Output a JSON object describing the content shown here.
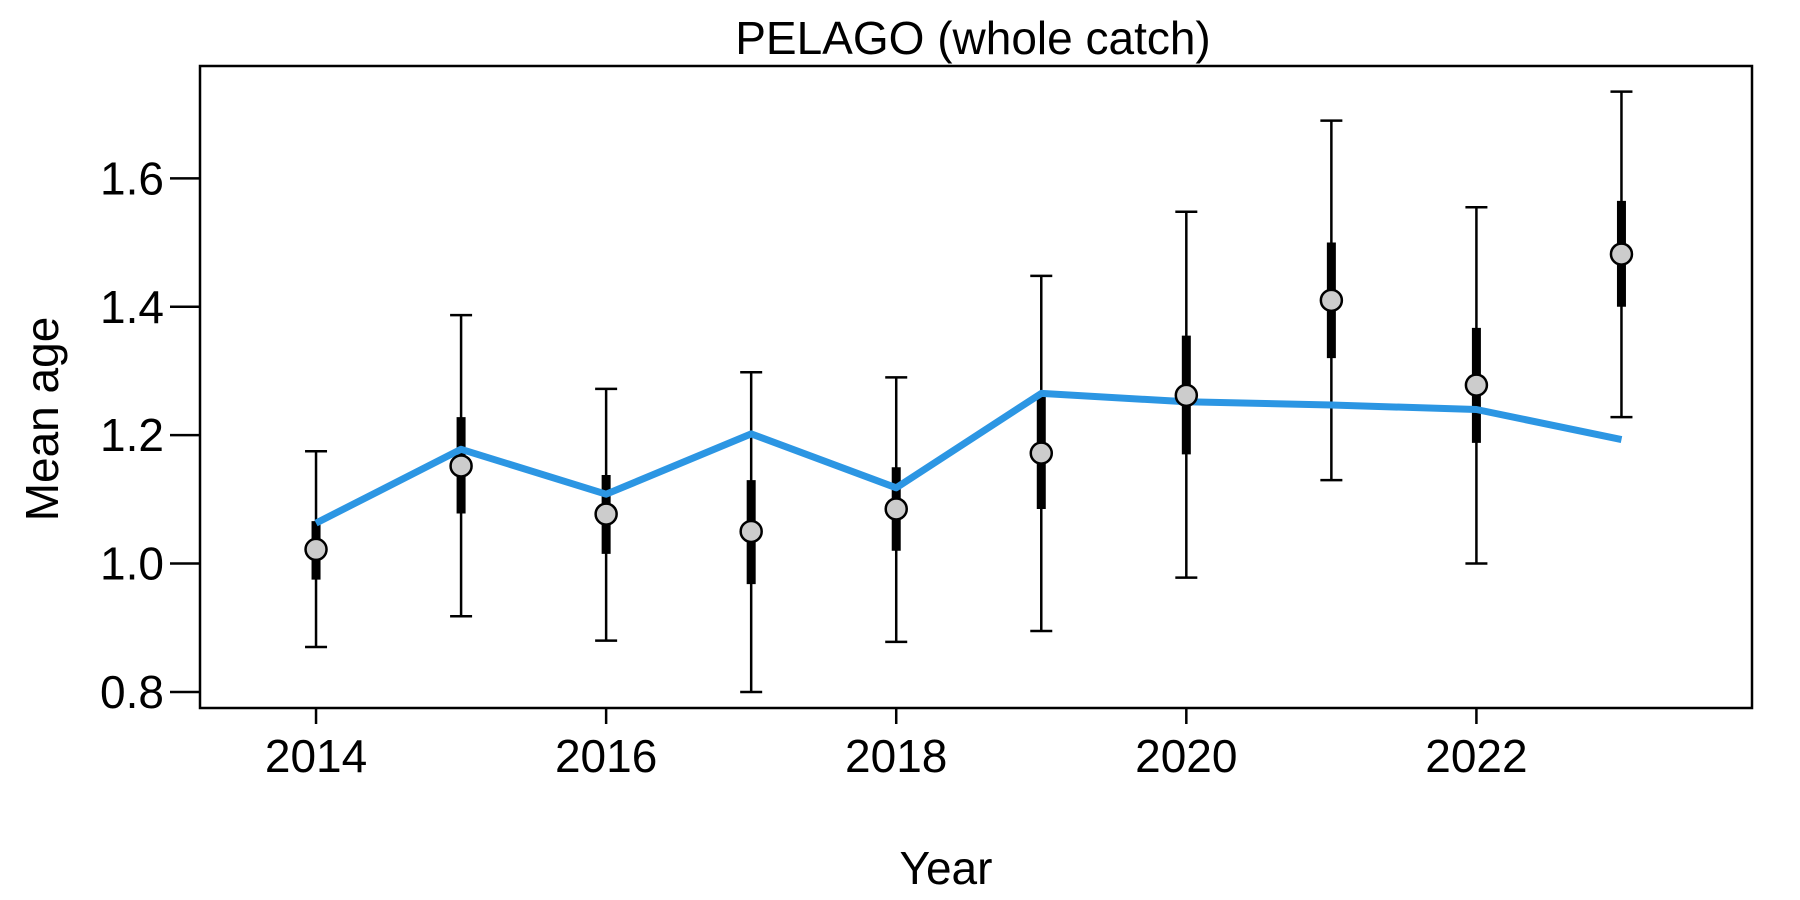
{
  "chart_data": {
    "type": "scatter",
    "title": "PELAGO (whole catch)",
    "xlabel": "Year",
    "ylabel": "Mean age",
    "xlim": [
      2013.2,
      2023.9
    ],
    "ylim": [
      0.775,
      1.775
    ],
    "x_ticks": [
      2014,
      2016,
      2018,
      2020,
      2022
    ],
    "y_ticks": [
      0.8,
      1.0,
      1.2,
      1.4,
      1.6
    ],
    "x_tick_labels": [
      "2014",
      "2016",
      "2018",
      "2020",
      "2022"
    ],
    "y_tick_labels": [
      "0.8",
      "1.0",
      "1.2",
      "1.4",
      "1.6"
    ],
    "grid": false,
    "observations": {
      "x": [
        2014,
        2015,
        2016,
        2017,
        2018,
        2019,
        2020,
        2021,
        2022,
        2023
      ],
      "mean": [
        1.022,
        1.152,
        1.077,
        1.05,
        1.085,
        1.172,
        1.262,
        1.41,
        1.278,
        1.482
      ],
      "inner_lower": [
        0.975,
        1.078,
        1.015,
        0.968,
        1.02,
        1.085,
        1.17,
        1.32,
        1.188,
        1.4
      ],
      "inner_upper": [
        1.066,
        1.228,
        1.138,
        1.13,
        1.15,
        1.262,
        1.355,
        1.5,
        1.367,
        1.565
      ],
      "outer_lower": [
        0.87,
        0.918,
        0.88,
        0.8,
        0.878,
        0.895,
        0.978,
        1.13,
        1.0,
        1.228
      ],
      "outer_upper": [
        1.175,
        1.387,
        1.272,
        1.298,
        1.29,
        1.448,
        1.548,
        1.69,
        1.555,
        1.735
      ],
      "marker_fill": "#cccccc",
      "marker_edge": "#000000"
    },
    "fit": {
      "x": [
        2014,
        2015,
        2016,
        2017,
        2018,
        2019,
        2020,
        2021,
        2022,
        2023
      ],
      "y": [
        1.063,
        1.178,
        1.108,
        1.202,
        1.118,
        1.265,
        1.252,
        1.247,
        1.24,
        1.193
      ],
      "color": "#2c96e3"
    }
  }
}
